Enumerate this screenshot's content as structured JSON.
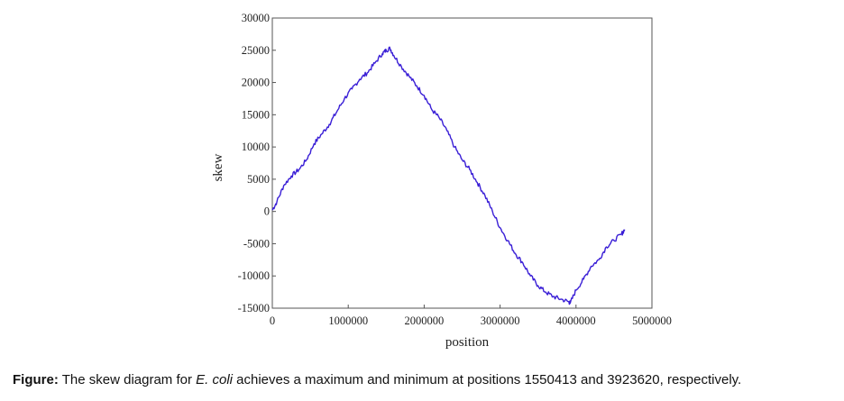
{
  "chart_data": {
    "type": "line",
    "title": "",
    "xlabel": "position",
    "ylabel": "skew",
    "xlim": [
      0,
      5000000
    ],
    "ylim": [
      -15000,
      30000
    ],
    "xticks": [
      0,
      1000000,
      2000000,
      3000000,
      4000000,
      5000000
    ],
    "xtick_labels": [
      "0",
      "1000000",
      "2000000",
      "3000000",
      "4000000",
      "5000000"
    ],
    "yticks": [
      30000,
      25000,
      20000,
      15000,
      10000,
      5000,
      0,
      -5000,
      -10000,
      -15000
    ],
    "ytick_labels": [
      "30000",
      "25000",
      "20000",
      "15000",
      "10000",
      "5000",
      "0",
      "-5000",
      "-10000",
      "-15000"
    ],
    "grid": false,
    "line_color": "#3a1fd6",
    "series": [
      {
        "x": [
          0,
          60000,
          150000,
          250000,
          350000,
          450000,
          550000,
          650000,
          750000,
          850000,
          950000,
          1050000,
          1150000,
          1250000,
          1350000,
          1450000,
          1500000,
          1550413,
          1600000,
          1700000,
          1800000,
          1900000,
          2000000,
          2100000,
          2200000,
          2300000,
          2400000,
          2500000,
          2600000,
          2700000,
          2800000,
          2900000,
          3000000,
          3100000,
          3200000,
          3300000,
          3400000,
          3500000,
          3600000,
          3700000,
          3800000,
          3900000,
          3923620,
          4000000,
          4100000,
          4200000,
          4300000,
          4400000,
          4500000,
          4600000,
          4640000
        ],
        "y": [
          200,
          1500,
          4000,
          5500,
          6500,
          8000,
          10500,
          12000,
          13500,
          15500,
          17500,
          19000,
          20500,
          21500,
          23000,
          24500,
          25000,
          25300,
          24200,
          22500,
          21000,
          19500,
          18000,
          15800,
          14500,
          12500,
          10000,
          8000,
          6500,
          4500,
          2500,
          0,
          -2500,
          -4500,
          -6500,
          -8000,
          -10000,
          -11500,
          -12500,
          -13200,
          -13600,
          -14000,
          -14200,
          -12200,
          -10500,
          -8500,
          -7500,
          -5500,
          -4500,
          -3500,
          -2800
        ]
      }
    ]
  },
  "caption": {
    "label": "Figure:",
    "text_before": " The skew diagram for ",
    "organism": "E. coli",
    "text_after": " achieves a maximum and minimum at positions 1550413 and 3923620, respectively."
  }
}
